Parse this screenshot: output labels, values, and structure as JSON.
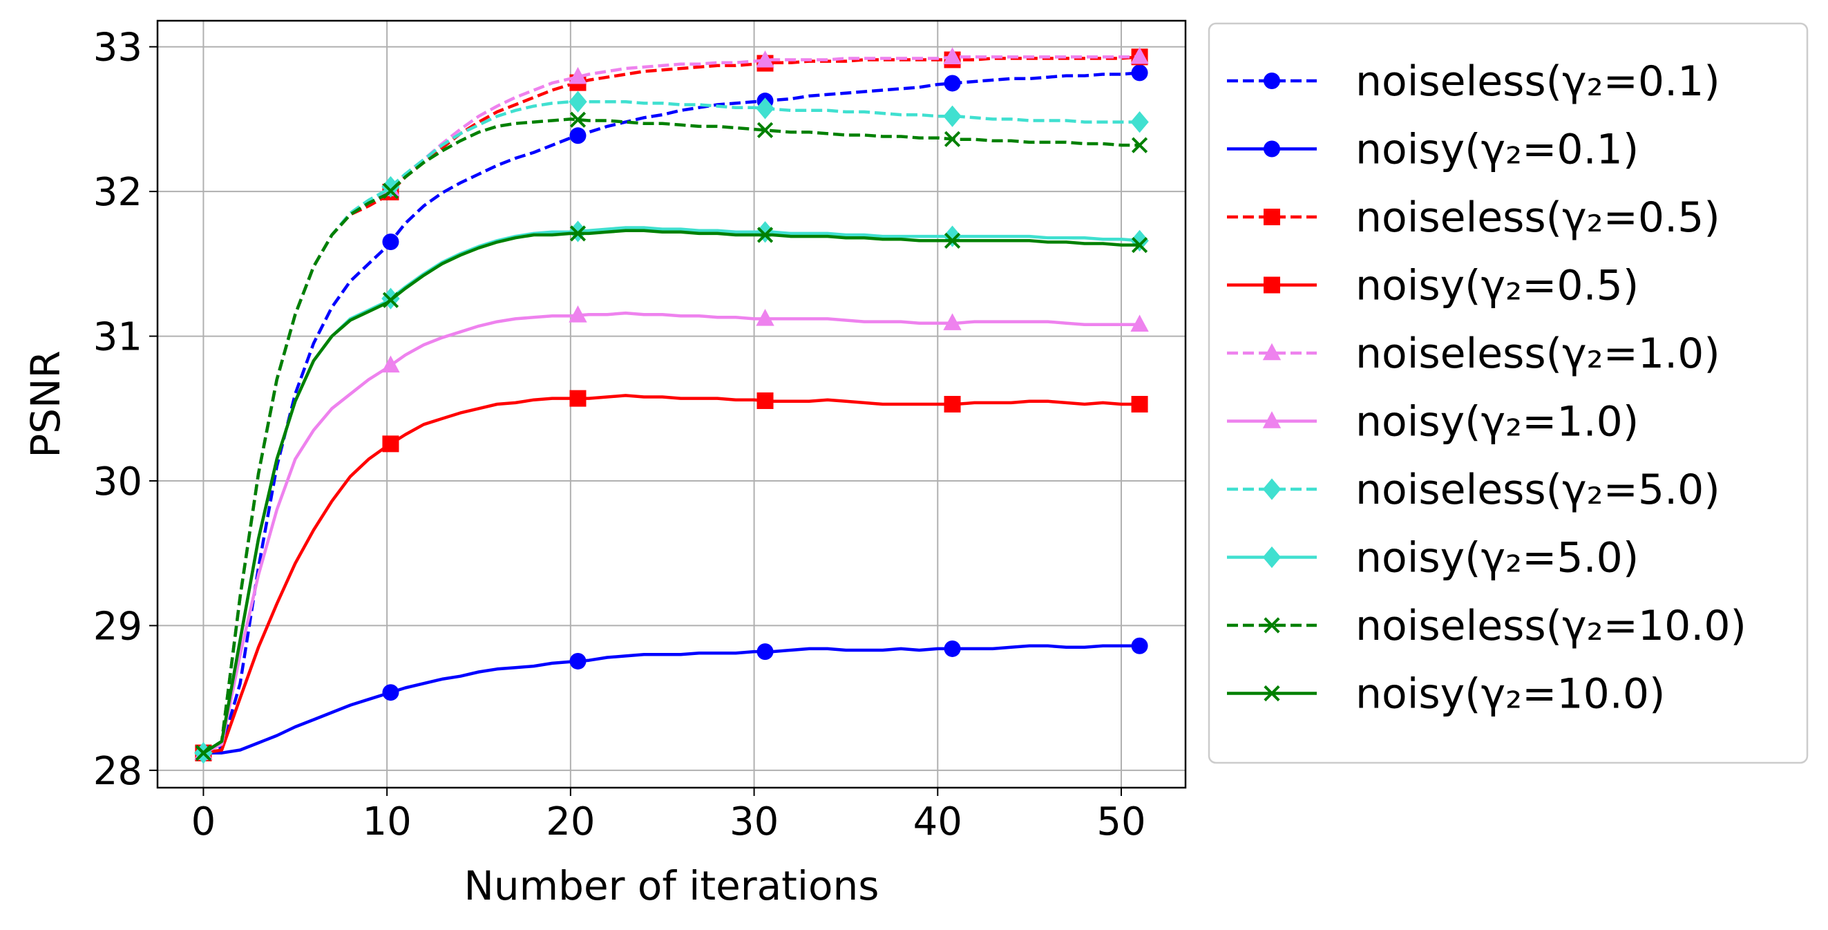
{
  "chart_data": {
    "type": "line",
    "title": "",
    "xlabel": "Number of iterations",
    "ylabel": "PSNR",
    "xlim": [
      -2.5,
      53.5
    ],
    "ylim": [
      27.88,
      33.18
    ],
    "xticks": [
      0,
      10,
      20,
      30,
      40,
      50
    ],
    "yticks": [
      28,
      29,
      30,
      31,
      32,
      33
    ],
    "grid": true,
    "legend_position": "outside-right",
    "x": [
      0,
      1,
      2,
      3,
      4,
      5,
      6,
      7,
      8,
      9,
      10,
      11,
      12,
      13,
      14,
      15,
      16,
      17,
      18,
      19,
      20,
      21,
      22,
      23,
      24,
      25,
      26,
      27,
      28,
      29,
      30,
      31,
      32,
      33,
      34,
      35,
      36,
      37,
      38,
      39,
      40,
      41,
      42,
      43,
      44,
      45,
      46,
      47,
      48,
      49,
      50,
      51
    ],
    "marker_x": [
      0,
      10.2,
      20.4,
      30.6,
      40.8,
      51
    ],
    "series": [
      {
        "name": "noiseless(γ₂=0.1)",
        "color": "#0000ff",
        "linestyle": "dashed",
        "marker": "circle",
        "values": [
          28.12,
          28.16,
          28.6,
          29.4,
          30.1,
          30.6,
          30.95,
          31.2,
          31.38,
          31.5,
          31.62,
          31.78,
          31.9,
          31.99,
          32.06,
          32.12,
          32.18,
          32.23,
          32.27,
          32.32,
          32.37,
          32.41,
          32.45,
          32.48,
          32.51,
          32.53,
          32.56,
          32.58,
          32.6,
          32.61,
          32.62,
          32.63,
          32.64,
          32.66,
          32.67,
          32.68,
          32.69,
          32.7,
          32.71,
          32.72,
          32.74,
          32.75,
          32.76,
          32.77,
          32.78,
          32.78,
          32.79,
          32.8,
          32.8,
          32.81,
          32.81,
          32.82
        ]
      },
      {
        "name": "noisy(γ₂=0.1)",
        "color": "#0000ff",
        "linestyle": "solid",
        "marker": "circle",
        "values": [
          28.12,
          28.12,
          28.14,
          28.19,
          28.24,
          28.3,
          28.35,
          28.4,
          28.45,
          28.49,
          28.53,
          28.57,
          28.6,
          28.63,
          28.65,
          28.68,
          28.7,
          28.71,
          28.72,
          28.74,
          28.75,
          28.76,
          28.78,
          28.79,
          28.8,
          28.8,
          28.8,
          28.81,
          28.81,
          28.81,
          28.82,
          28.82,
          28.83,
          28.84,
          28.84,
          28.83,
          28.83,
          28.83,
          28.84,
          28.83,
          28.84,
          28.84,
          28.84,
          28.84,
          28.85,
          28.86,
          28.86,
          28.85,
          28.85,
          28.86,
          28.86,
          28.86
        ]
      },
      {
        "name": "noiseless(γ₂=0.5)",
        "color": "#ff0000",
        "linestyle": "dashed",
        "marker": "square",
        "values": [
          28.12,
          28.2,
          29.2,
          30.05,
          30.7,
          31.15,
          31.48,
          31.7,
          31.84,
          31.9,
          31.97,
          32.1,
          32.2,
          32.3,
          32.4,
          32.48,
          32.55,
          32.6,
          32.65,
          32.7,
          32.74,
          32.77,
          32.79,
          32.81,
          32.83,
          32.84,
          32.85,
          32.86,
          32.87,
          32.87,
          32.88,
          32.89,
          32.89,
          32.9,
          32.9,
          32.9,
          32.91,
          32.91,
          32.91,
          32.91,
          32.91,
          32.91,
          32.91,
          32.92,
          32.92,
          32.92,
          32.92,
          32.92,
          32.92,
          32.92,
          32.92,
          32.93
        ]
      },
      {
        "name": "noisy(γ₂=0.5)",
        "color": "#ff0000",
        "linestyle": "solid",
        "marker": "square",
        "values": [
          28.12,
          28.14,
          28.5,
          28.85,
          29.15,
          29.43,
          29.66,
          29.86,
          30.03,
          30.15,
          30.24,
          30.32,
          30.39,
          30.43,
          30.47,
          30.5,
          30.53,
          30.54,
          30.56,
          30.57,
          30.57,
          30.57,
          30.58,
          30.59,
          30.58,
          30.58,
          30.57,
          30.57,
          30.57,
          30.56,
          30.56,
          30.55,
          30.55,
          30.55,
          30.56,
          30.55,
          30.54,
          30.53,
          30.53,
          30.53,
          30.53,
          30.53,
          30.54,
          30.54,
          30.54,
          30.55,
          30.55,
          30.54,
          30.53,
          30.54,
          30.53,
          30.53
        ]
      },
      {
        "name": "noiseless(γ₂=1.0)",
        "color": "#ee82ee",
        "linestyle": "dashed",
        "marker": "triangle",
        "values": [
          28.12,
          28.2,
          29.2,
          30.05,
          30.7,
          31.15,
          31.48,
          31.7,
          31.85,
          31.92,
          31.99,
          32.12,
          32.22,
          32.33,
          32.43,
          32.52,
          32.59,
          32.65,
          32.7,
          32.75,
          32.78,
          32.81,
          32.83,
          32.85,
          32.86,
          32.87,
          32.88,
          32.88,
          32.89,
          32.89,
          32.9,
          32.91,
          32.91,
          32.91,
          32.91,
          32.92,
          32.92,
          32.92,
          32.92,
          32.92,
          32.92,
          32.93,
          32.93,
          32.93,
          32.93,
          32.93,
          32.93,
          32.93,
          32.93,
          32.93,
          32.93,
          32.93
        ]
      },
      {
        "name": "noisy(γ₂=1.0)",
        "color": "#ee82ee",
        "linestyle": "solid",
        "marker": "triangle",
        "values": [
          28.12,
          28.18,
          28.8,
          29.35,
          29.8,
          30.15,
          30.35,
          30.5,
          30.6,
          30.7,
          30.78,
          30.87,
          30.94,
          30.99,
          31.03,
          31.07,
          31.1,
          31.12,
          31.13,
          31.14,
          31.14,
          31.15,
          31.15,
          31.16,
          31.15,
          31.15,
          31.14,
          31.14,
          31.13,
          31.13,
          31.12,
          31.12,
          31.12,
          31.12,
          31.12,
          31.11,
          31.1,
          31.1,
          31.1,
          31.09,
          31.09,
          31.09,
          31.1,
          31.1,
          31.1,
          31.1,
          31.1,
          31.09,
          31.08,
          31.08,
          31.08,
          31.08
        ]
      },
      {
        "name": "noiseless(γ₂=5.0)",
        "color": "#40e0d0",
        "linestyle": "dashed",
        "marker": "diamond",
        "values": [
          28.12,
          28.2,
          29.2,
          30.05,
          30.7,
          31.15,
          31.48,
          31.7,
          31.85,
          31.94,
          32.01,
          32.12,
          32.22,
          32.32,
          32.4,
          32.46,
          32.52,
          32.56,
          32.59,
          32.61,
          32.62,
          32.62,
          32.62,
          32.62,
          32.61,
          32.61,
          32.6,
          32.6,
          32.59,
          32.58,
          32.58,
          32.57,
          32.56,
          32.56,
          32.56,
          32.55,
          32.55,
          32.54,
          32.53,
          32.53,
          32.52,
          32.52,
          32.51,
          32.5,
          32.5,
          32.49,
          32.49,
          32.49,
          32.48,
          32.48,
          32.48,
          32.48
        ]
      },
      {
        "name": "noisy(γ₂=5.0)",
        "color": "#40e0d0",
        "linestyle": "solid",
        "marker": "diamond",
        "values": [
          28.12,
          28.2,
          28.9,
          29.6,
          30.15,
          30.55,
          30.83,
          31.0,
          31.12,
          31.18,
          31.24,
          31.34,
          31.43,
          31.51,
          31.57,
          31.62,
          31.66,
          31.69,
          31.71,
          31.72,
          31.72,
          31.73,
          31.74,
          31.75,
          31.75,
          31.74,
          31.74,
          31.73,
          31.73,
          31.72,
          31.72,
          31.72,
          31.71,
          31.71,
          31.71,
          31.7,
          31.7,
          31.69,
          31.69,
          31.69,
          31.69,
          31.69,
          31.69,
          31.69,
          31.69,
          31.69,
          31.68,
          31.68,
          31.68,
          31.67,
          31.67,
          31.66
        ]
      },
      {
        "name": "noiseless(γ₂=10.0)",
        "color": "#008000",
        "linestyle": "dashed",
        "marker": "x",
        "values": [
          28.12,
          28.2,
          29.2,
          30.05,
          30.7,
          31.15,
          31.48,
          31.7,
          31.84,
          31.92,
          31.98,
          32.1,
          32.2,
          32.28,
          32.35,
          32.41,
          32.45,
          32.47,
          32.48,
          32.49,
          32.5,
          32.49,
          32.49,
          32.48,
          32.47,
          32.47,
          32.46,
          32.45,
          32.45,
          32.44,
          32.43,
          32.42,
          32.41,
          32.41,
          32.4,
          32.39,
          32.39,
          32.38,
          32.38,
          32.37,
          32.37,
          32.36,
          32.36,
          32.35,
          32.35,
          32.34,
          32.34,
          32.34,
          32.33,
          32.33,
          32.32,
          32.32
        ]
      },
      {
        "name": "noisy(γ₂=10.0)",
        "color": "#008000",
        "linestyle": "solid",
        "marker": "x",
        "values": [
          28.12,
          28.2,
          28.9,
          29.6,
          30.15,
          30.55,
          30.83,
          31.0,
          31.11,
          31.17,
          31.23,
          31.33,
          31.42,
          31.5,
          31.56,
          31.61,
          31.65,
          31.68,
          31.7,
          31.7,
          31.71,
          31.71,
          31.72,
          31.73,
          31.73,
          31.72,
          31.72,
          31.71,
          31.71,
          31.7,
          31.7,
          31.7,
          31.69,
          31.69,
          31.69,
          31.68,
          31.68,
          31.67,
          31.67,
          31.66,
          31.66,
          31.66,
          31.66,
          31.66,
          31.66,
          31.66,
          31.65,
          31.65,
          31.64,
          31.64,
          31.63,
          31.63
        ]
      }
    ]
  }
}
